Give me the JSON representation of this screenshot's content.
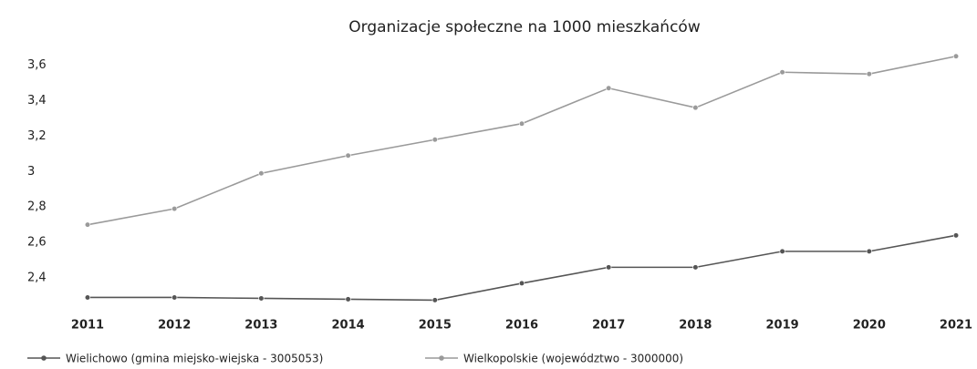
{
  "chart_data": {
    "type": "line",
    "title": "Organizacje społeczne na 1000 mieszkańców",
    "categories": [
      "2011",
      "2012",
      "2013",
      "2014",
      "2015",
      "2016",
      "2017",
      "2018",
      "2019",
      "2020",
      "2021"
    ],
    "series": [
      {
        "name": "Wielichowo (gmina miejsko-wiejska - 3005053)",
        "color": "#555555",
        "values": [
          2.29,
          2.29,
          2.285,
          2.28,
          2.275,
          2.37,
          2.46,
          2.46,
          2.55,
          2.55,
          2.64
        ]
      },
      {
        "name": "Wielkopolskie (województwo - 3000000)",
        "color": "#9a9a9a",
        "values": [
          2.7,
          2.79,
          2.99,
          3.09,
          3.18,
          3.27,
          3.47,
          3.36,
          3.56,
          3.55,
          3.65
        ]
      }
    ],
    "ylim": [
      2.2,
      3.7
    ],
    "yticks": [
      {
        "value": 2.4,
        "label": "2,4"
      },
      {
        "value": 2.6,
        "label": "2,6"
      },
      {
        "value": 2.8,
        "label": "2,8"
      },
      3,
      {
        "value": 3.2,
        "label": "3,2"
      },
      {
        "value": 3.4,
        "label": "3,4"
      },
      {
        "value": 3.6,
        "label": "3,6"
      }
    ],
    "grid": false,
    "legend": "bottom"
  }
}
